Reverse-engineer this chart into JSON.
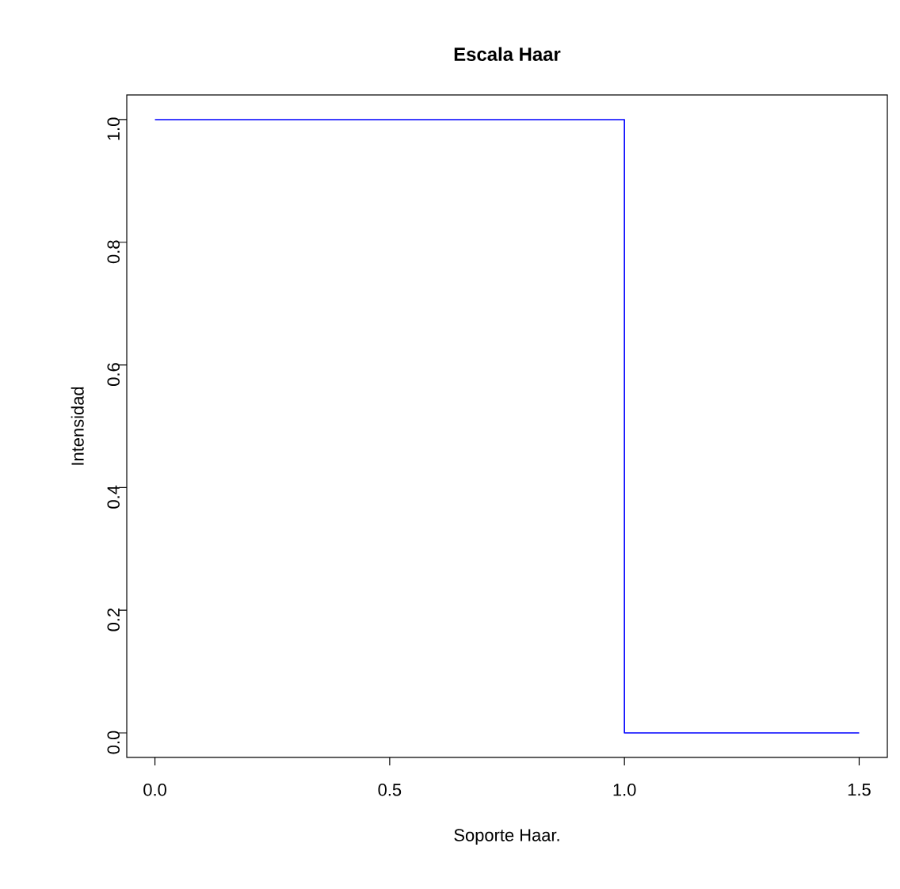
{
  "chart_data": {
    "type": "step",
    "title": "Escala Haar",
    "xlabel": "Soporte Haar.",
    "ylabel": "Intensidad",
    "x": [
      0,
      1,
      1.5
    ],
    "series": [
      {
        "color": "#0000ff",
        "values": [
          1,
          0,
          0
        ]
      }
    ],
    "xlim": [
      -0.06,
      1.56
    ],
    "ylim": [
      -0.04,
      1.04
    ],
    "xticks": [
      {
        "value": 0,
        "label": "0.0"
      },
      {
        "value": 0.5,
        "label": "0.5"
      },
      {
        "value": 1,
        "label": "1.0"
      },
      {
        "value": 1.5,
        "label": "1.5"
      }
    ],
    "yticks": [
      {
        "value": 0,
        "label": "0.0"
      },
      {
        "value": 0.2,
        "label": "0.2"
      },
      {
        "value": 0.4,
        "label": "0.4"
      },
      {
        "value": 0.6,
        "label": "0.6"
      },
      {
        "value": 0.8,
        "label": "0.8"
      },
      {
        "value": 1,
        "label": "1.0"
      }
    ],
    "grid": false,
    "marker": "none",
    "line_style": "solid"
  }
}
